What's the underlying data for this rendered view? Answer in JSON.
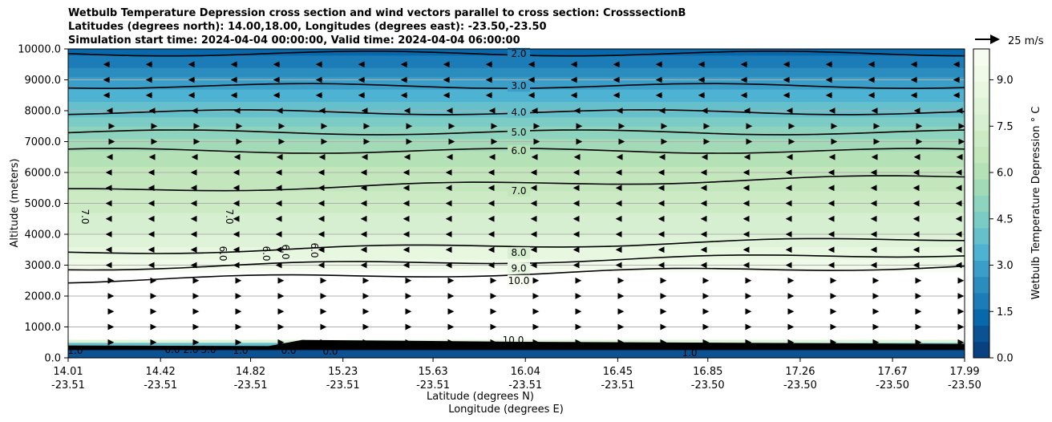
{
  "chart_data": {
    "type": "heatmap",
    "title_lines": [
      "Wetbulb Temperature Depression cross section and wind vectors parallel to cross section: CrosssectionB",
      "Latitudes (degrees north): 14.00,18.00, Longitudes (degrees east): -23.50,-23.50",
      "Simulation start time: 2024-04-04 00:00:00, Valid time: 2024-04-04 06:00:00"
    ],
    "xlabel_lat": "Latitude (degrees N)",
    "xlabel_lon": "Longitude (degrees E)",
    "ylabel": "Altitude (meters)",
    "ylim": [
      0,
      10000
    ],
    "y_ticks": [
      0,
      1000,
      2000,
      3000,
      4000,
      5000,
      6000,
      7000,
      8000,
      9000,
      10000
    ],
    "y_tick_labels": [
      "0.0",
      "1000.0",
      "2000.0",
      "3000.0",
      "4000.0",
      "5000.0",
      "6000.0",
      "7000.0",
      "8000.0",
      "9000.0",
      "10000.0"
    ],
    "x_lat_range": [
      14.01,
      17.99
    ],
    "x_ticks": [
      {
        "lat": "14.01",
        "lon": "-23.51"
      },
      {
        "lat": "14.42",
        "lon": "-23.51"
      },
      {
        "lat": "14.82",
        "lon": "-23.51"
      },
      {
        "lat": "15.23",
        "lon": "-23.51"
      },
      {
        "lat": "15.63",
        "lon": "-23.51"
      },
      {
        "lat": "16.04",
        "lon": "-23.51"
      },
      {
        "lat": "16.45",
        "lon": "-23.51"
      },
      {
        "lat": "16.85",
        "lon": "-23.50"
      },
      {
        "lat": "17.26",
        "lon": "-23.50"
      },
      {
        "lat": "17.67",
        "lon": "-23.50"
      },
      {
        "lat": "17.99",
        "lon": "-23.50"
      }
    ],
    "grid": "horizontal",
    "colorbar": {
      "label": "Wetbulb Temperature Depression ° C",
      "range": [
        0,
        10
      ],
      "levels": [
        0,
        0.5,
        1,
        1.5,
        2,
        2.5,
        3,
        3.5,
        4,
        4.5,
        5,
        5.5,
        6,
        6.5,
        7,
        7.5,
        8,
        8.5,
        9,
        9.5,
        10
      ],
      "tick_values": [
        0,
        1.5,
        3,
        4.5,
        6,
        7.5,
        9
      ],
      "tick_labels": [
        "0.0",
        "1.5",
        "3.0",
        "4.5",
        "6.0",
        "7.5",
        "9.0"
      ],
      "colors": [
        "#084081",
        "#0a5294",
        "#0868ac",
        "#1c7cb8",
        "#2b8cbe",
        "#3a9ec8",
        "#4eb3d3",
        "#66c0cc",
        "#7bccc4",
        "#8dd3be",
        "#a2dab8",
        "#b5e1b6",
        "#c3e6bd",
        "#ccebc5",
        "#d6efd0",
        "#dff3d8",
        "#e8f7e0",
        "#f0fae8",
        "#f7fcf0"
      ]
    },
    "quiver_key": {
      "label": "25 m/s",
      "value": 25
    },
    "contours": [
      {
        "level": "2.0",
        "altitude": 9850
      },
      {
        "level": "3.0",
        "altitude": 8800
      },
      {
        "level": "4.0",
        "altitude": 7950
      },
      {
        "level": "5.0",
        "altitude": 7300
      },
      {
        "level": "6.0",
        "altitude": 6700
      },
      {
        "level": "7.0",
        "altitude": 5400
      },
      {
        "level": "8.0",
        "altitude": 3400
      },
      {
        "level": "9.0",
        "altitude": 2900
      },
      {
        "level": "10.0",
        "altitude": 2500
      }
    ],
    "extra_contour_labels": [
      "7.0",
      "7.0",
      "6.0",
      "6.0",
      "6.0",
      "6.0",
      "10.0",
      "0.0",
      "1.0",
      "0.0",
      "2.0",
      "3.0",
      "1.0",
      "1.0",
      "0.0"
    ],
    "profile": [
      {
        "alt": 10000,
        "val": 1.2
      },
      {
        "alt": 9500,
        "val": 2.0
      },
      {
        "alt": 9000,
        "val": 2.8
      },
      {
        "alt": 8500,
        "val": 3.4
      },
      {
        "alt": 8000,
        "val": 4.0
      },
      {
        "alt": 7500,
        "val": 4.7
      },
      {
        "alt": 7000,
        "val": 5.4
      },
      {
        "alt": 6500,
        "val": 6.1
      },
      {
        "alt": 6000,
        "val": 6.5
      },
      {
        "alt": 5000,
        "val": 7.1
      },
      {
        "alt": 4000,
        "val": 7.9
      },
      {
        "alt": 3000,
        "val": 9.2
      },
      {
        "alt": 2600,
        "val": 10.5
      },
      {
        "alt": 600,
        "val": 10.5
      },
      {
        "alt": 450,
        "val": 4.0
      },
      {
        "alt": 250,
        "val": 1.0
      },
      {
        "alt": 0,
        "val": 0.5
      }
    ]
  }
}
